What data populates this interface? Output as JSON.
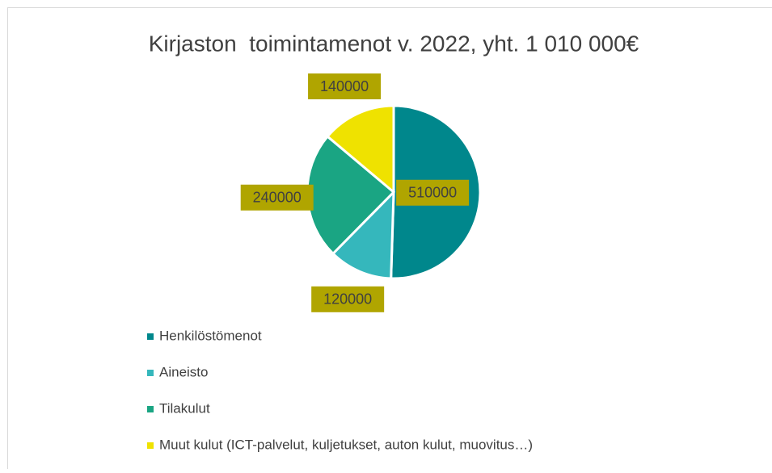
{
  "chart_data": {
    "type": "pie",
    "title": "Kirjaston  toimintamenot v. 2022, yht. 1 010 000€",
    "categories": [
      "Henkilöstömenot",
      "Aineisto",
      "Tilakulut",
      "Muut kulut (ICT-palvelut, kuljetukset, auton kulut, muovitus…)"
    ],
    "values": [
      510000,
      120000,
      240000,
      140000
    ],
    "colors": [
      "#00878c",
      "#35b7bc",
      "#1aa583",
      "#efe200"
    ],
    "legend": "bottom"
  }
}
